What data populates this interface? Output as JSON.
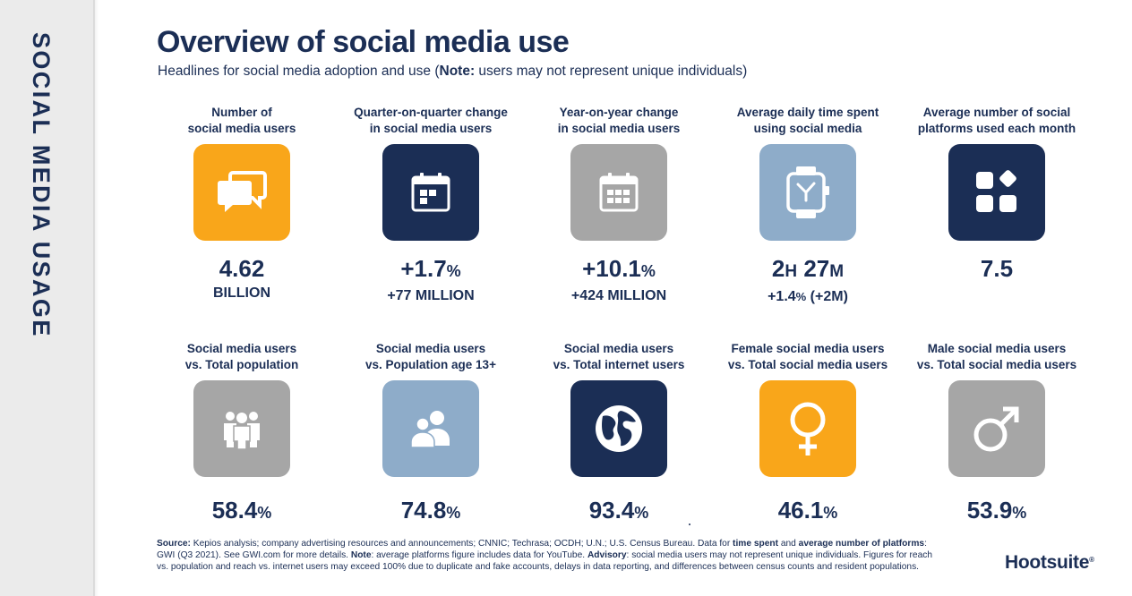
{
  "sidebar": {
    "title": "SOCIAL MEDIA USAGE"
  },
  "header": {
    "title": "Overview of social media use",
    "subtitle_before": "Headlines for social media adoption and use (",
    "subtitle_bold": "Note:",
    "subtitle_after": " users may not represent unique individuals)"
  },
  "colors": {
    "navy": "#1b2e55",
    "orange": "#f9a61a",
    "grey": "#a6a6a6",
    "light_blue": "#8eacc9",
    "sidebar": "#ebebeb"
  },
  "metrics_row1": [
    {
      "label": "Number of social media users",
      "label_lines": [
        "Number of",
        "social media users"
      ],
      "icon": "speech-bubbles-icon",
      "color": "orange",
      "value": "4.62",
      "value_unit": "",
      "sub": "BILLION",
      "sub_unit": ""
    },
    {
      "label": "Quarter-on-quarter change in social media users",
      "label_lines": [
        "Quarter-on-quarter change",
        "in social media users"
      ],
      "icon": "calendar-icon",
      "color": "navy",
      "value": "+1.7",
      "value_unit": "%",
      "sub": "+77 MILLION",
      "sub_unit": ""
    },
    {
      "label": "Year-on-year change in social media users",
      "label_lines": [
        "Year-on-year change",
        "in social media users"
      ],
      "icon": "calendar-year-icon",
      "color": "grey",
      "value": "+10.1",
      "value_unit": "%",
      "sub": "+424 MILLION",
      "sub_unit": ""
    },
    {
      "label": "Average daily time spent using social media",
      "label_lines": [
        "Average daily time spent",
        "using social media"
      ],
      "icon": "smartwatch-icon",
      "color": "light_blue",
      "value_parts": [
        "2",
        "H",
        " 27",
        "M"
      ],
      "sub_parts": [
        "+1.4",
        "%",
        " (+2M)"
      ]
    },
    {
      "label": "Average number of social platforms used each month",
      "label_lines": [
        "Average number of social",
        "platforms used each month"
      ],
      "icon": "apps-icon",
      "color": "navy",
      "value": "7.5",
      "value_unit": "",
      "sub": "",
      "sub_unit": ""
    }
  ],
  "metrics_row2": [
    {
      "label_lines": [
        "Social media users",
        "vs. Total population"
      ],
      "icon": "people-group-icon",
      "color": "grey",
      "value": "58.4",
      "value_unit": "%"
    },
    {
      "label_lines": [
        "Social media users",
        "vs. Population age 13+"
      ],
      "icon": "users-icon",
      "color": "light_blue",
      "value": "74.8",
      "value_unit": "%"
    },
    {
      "label_lines": [
        "Social media users",
        "vs. Total internet users"
      ],
      "icon": "globe-icon",
      "color": "navy",
      "value": "93.4",
      "value_unit": "%"
    },
    {
      "label_lines": [
        "Female social media users",
        "vs. Total social media users"
      ],
      "icon": "female-symbol-icon",
      "color": "orange",
      "value": "46.1",
      "value_unit": "%"
    },
    {
      "label_lines": [
        "Male social media users",
        "vs. Total social media users"
      ],
      "icon": "male-symbol-icon",
      "color": "grey",
      "value": "53.9",
      "value_unit": "%"
    }
  ],
  "footnote": {
    "source_label": "Source:",
    "t1": " Kepios analysis; company advertising resources and announcements; CNNIC; Techrasa; OCDH; U.N.; U.S. Census Bureau. Data for ",
    "b1": "time spent",
    "t2": " and ",
    "b2": "average number of platforms",
    "t3": ": GWI (Q3 2021). See GWI.com for more details. ",
    "b3": "Note",
    "t4": ": average platforms figure includes data for YouTube. ",
    "b4": "Advisory",
    "t5": ": social media users may not represent unique individuals. Figures for reach vs. population and reach vs. internet users may exceed 100% due to duplicate and fake accounts, delays in data reporting, and differences between census counts and resident populations."
  },
  "brand": {
    "name": "Hootsuite",
    "mark": "®"
  }
}
